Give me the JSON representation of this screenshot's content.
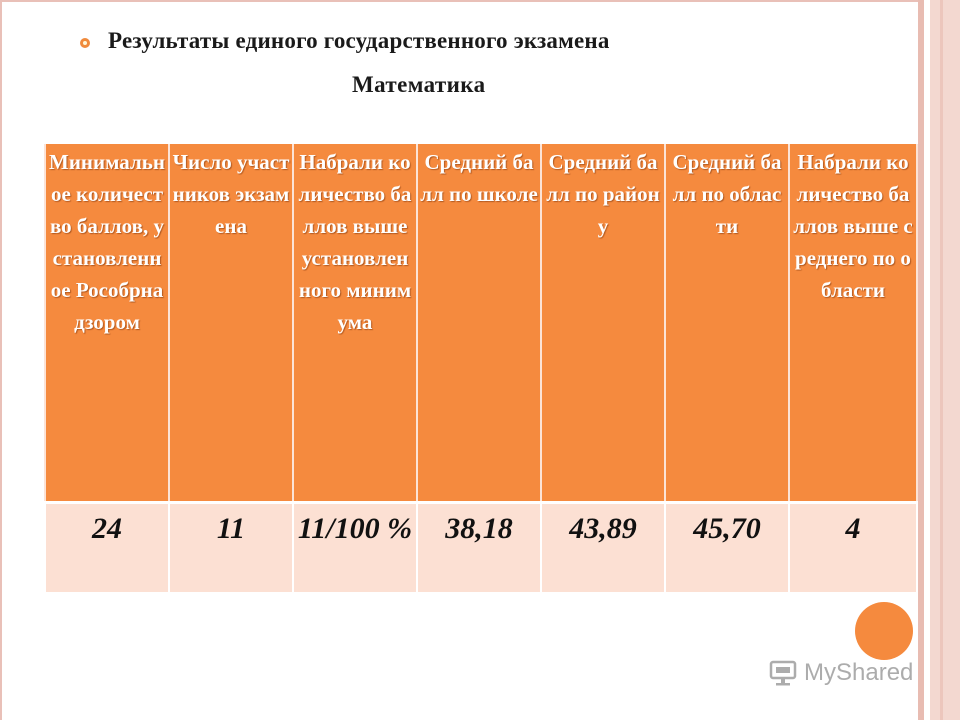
{
  "slide": {
    "title": "Результаты единого государственного экзамена",
    "subtitle": "Математика"
  },
  "table": {
    "headers": [
      "Минимальное количество баллов, установленное Рособрнадзором",
      "Число участников экзамена",
      "Набрали количество баллов выше установленного минимума",
      "Средний балл по школе",
      "Средний балл по району",
      "Средний балл по области",
      "Набрали количество баллов выше среднего по области"
    ],
    "values": [
      "24",
      "11",
      "11/100 %",
      "38,18",
      "43,89",
      "45,70",
      "4"
    ]
  },
  "watermark": {
    "text": "MyShared",
    "icon": "myshared-logo-icon"
  },
  "colors": {
    "accent": "#f58a3e",
    "row_fill": "#fce0d3",
    "frame": "#e9c0b8"
  }
}
